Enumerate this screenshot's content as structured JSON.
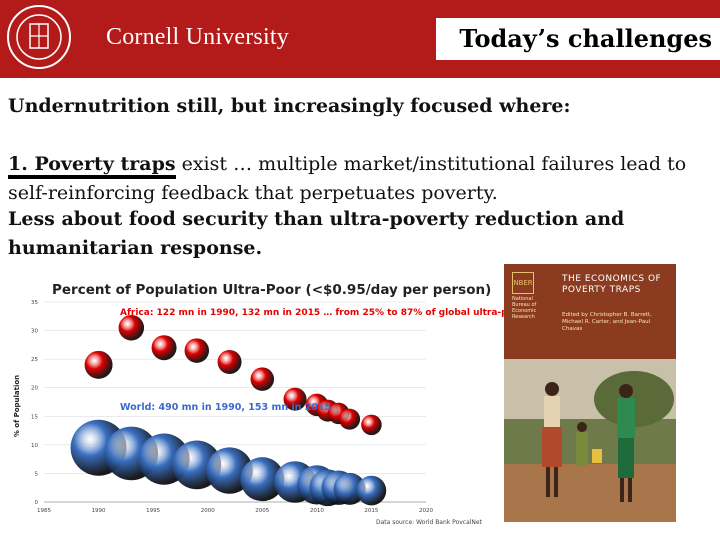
{
  "banner": {
    "university_name": "Cornell University",
    "slide_title": "Today’s challenges",
    "seal_text": "CORNELL UNIVERSITY FOUNDED A.D. 1865"
  },
  "content": {
    "heading": "Undernutrition still, but increasingly focused where:",
    "point1_label": "1. Poverty traps",
    "point1_text": " exist … multiple market/institutional failures lead to self-reinforcing feedback that perpetuates poverty.",
    "point2": "Less about food security than ultra-poverty reduction and humanitarian response."
  },
  "chart_data": {
    "type": "scatter",
    "title": "Percent of Population Ultra-Poor (<$0.95/day per person)",
    "ylabel": "% of Population",
    "xlim": [
      1985,
      2020
    ],
    "ylim": [
      0,
      35
    ],
    "x_ticks": [
      1985,
      1990,
      1995,
      2000,
      2005,
      2010,
      2015,
      2020
    ],
    "y_ticks": [
      0,
      5,
      10,
      15,
      20,
      25,
      30,
      35
    ],
    "grid": true,
    "annotations": [
      "Africa: 122 mn in 1990, 132 mn in 2015 … from 25% to 87% of global ultra-poor",
      "World: 490 mn in 1990, 153 mn in 2015"
    ],
    "source": "Data source: World Bank PovcalNet",
    "series": [
      {
        "label": "Africa",
        "color": "#e00000",
        "points": [
          {
            "x": 1990,
            "y": 24.0
          },
          {
            "x": 1993,
            "y": 30.5
          },
          {
            "x": 1996,
            "y": 27.0
          },
          {
            "x": 1999,
            "y": 26.5
          },
          {
            "x": 2002,
            "y": 24.5
          },
          {
            "x": 2005,
            "y": 21.5
          },
          {
            "x": 2008,
            "y": 18.0
          },
          {
            "x": 2010,
            "y": 17.0
          },
          {
            "x": 2011,
            "y": 16.0
          },
          {
            "x": 2012,
            "y": 15.5
          },
          {
            "x": 2013,
            "y": 14.5
          },
          {
            "x": 2015,
            "y": 13.5
          }
        ]
      },
      {
        "label": "World",
        "color": "#3a6fc0",
        "points": [
          {
            "x": 1990,
            "y": 9.5
          },
          {
            "x": 1993,
            "y": 8.5
          },
          {
            "x": 1996,
            "y": 7.5
          },
          {
            "x": 1999,
            "y": 6.5
          },
          {
            "x": 2002,
            "y": 5.5
          },
          {
            "x": 2005,
            "y": 4.0
          },
          {
            "x": 2008,
            "y": 3.5
          },
          {
            "x": 2010,
            "y": 3.0
          },
          {
            "x": 2011,
            "y": 2.5
          },
          {
            "x": 2012,
            "y": 2.5
          },
          {
            "x": 2013,
            "y": 2.3
          },
          {
            "x": 2015,
            "y": 2.0
          }
        ]
      }
    ]
  },
  "book": {
    "title": "THE ECONOMICS OF POVERTY TRAPS",
    "publisher": "National Bureau of Economic Research",
    "editors": "Edited by Christopher B. Barrett, Michael R. Carter, and Jean-Paul Chavas",
    "logo_text": "NBER"
  }
}
